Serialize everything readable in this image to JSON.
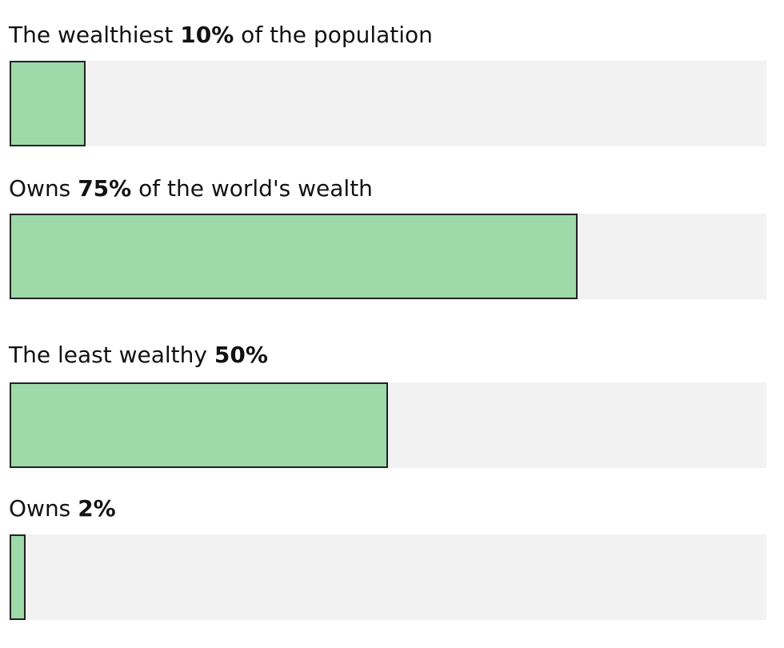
{
  "chart_data": {
    "type": "bar",
    "orientation": "horizontal",
    "title": "",
    "xlabel": "",
    "ylabel": "",
    "xlim": [
      0,
      100
    ],
    "grid": false,
    "legend": "none",
    "bar_color": "#9dd9a9",
    "track_color": "#f2f2f2",
    "bars": [
      {
        "label_before": "The wealthiest ",
        "value_text": "10%",
        "label_after": " of the population",
        "value": 10
      },
      {
        "label_before": "Owns ",
        "value_text": "75%",
        "label_after": " of the world's wealth",
        "value": 75
      },
      {
        "label_before": "The least wealthy ",
        "value_text": "50%",
        "label_after": "",
        "value": 50
      },
      {
        "label_before": "Owns ",
        "value_text": "2%",
        "label_after": "",
        "value": 2
      }
    ]
  }
}
